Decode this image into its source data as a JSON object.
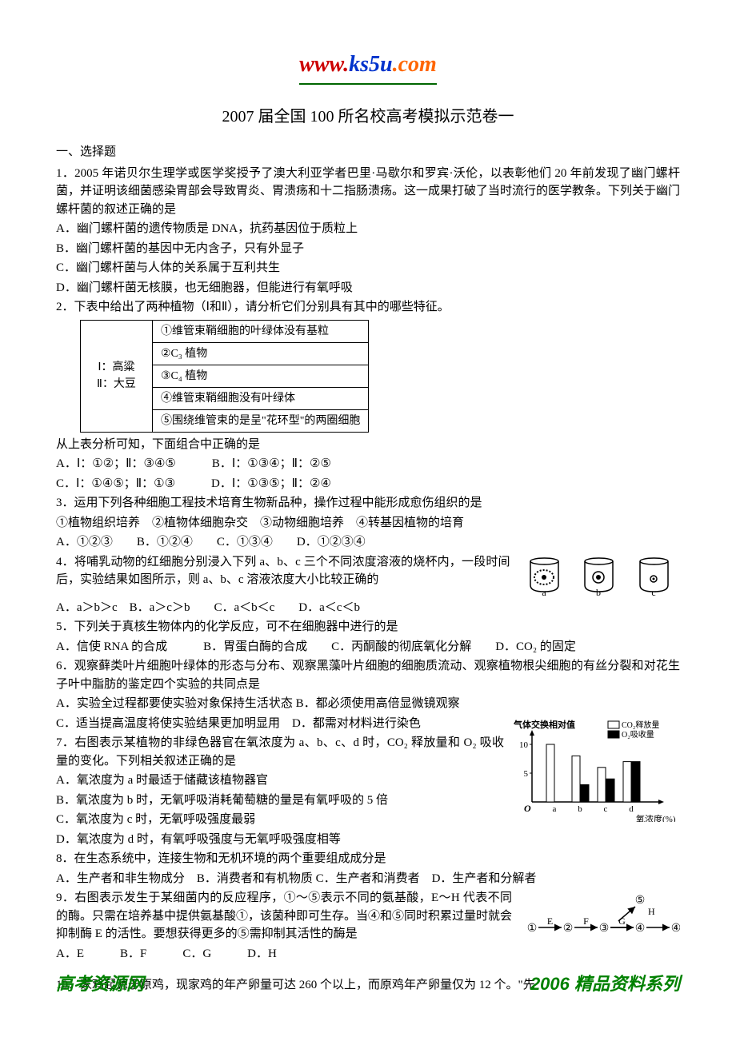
{
  "header": {
    "url_prefix": "www.",
    "url_main": "ks5u",
    "url_suffix": ".com"
  },
  "title": "2007 届全国 100 所名校高考模拟示范卷一",
  "section1": "一、选择题",
  "q1": {
    "stem": "1．2005 年诺贝尔生理学或医学奖授予了澳大利亚学者巴里·马歇尔和罗宾·沃伦，以表彰他们 20 年前发现了幽门螺杆菌，并证明该细菌感染胃部会导致胃炎、胃溃疡和十二指肠溃疡。这一成果打破了当时流行的医学教条。下列关于幽门螺杆菌的叙述正确的是",
    "a": "A．幽门螺杆菌的遗传物质是 DNA，抗药基因位于质粒上",
    "b": "B．幽门螺杆菌的基因中无内含子，只有外显子",
    "c": "C．幽门螺杆菌与人体的关系属于互利共生",
    "d": "D．幽门螺杆菌无核膜，也无细胞器，但能进行有氧呼吸"
  },
  "q2": {
    "stem": "2．下表中给出了两种植物（Ⅰ和Ⅱ），请分析它们分别具有其中的哪些特征。",
    "table_left": "Ⅰ：高粱\nⅡ：大豆",
    "row1": "①维管束鞘细胞的叶绿体没有基粒",
    "row2": "②C₃ 植物",
    "row3": "③C₄ 植物",
    "row4": "④维管束鞘细胞没有叶绿体",
    "row5": "⑤围绕维管束的是呈\"花环型\"的两圈细胞",
    "after": "从上表分析可知，下面组合中正确的是",
    "opts1": "A．Ⅰ：①②；Ⅱ：③④⑤　　　B．Ⅰ：①③④；Ⅱ：②⑤",
    "opts2": "C．Ⅰ：①④⑤；Ⅱ：①③　　　D．Ⅰ：①③⑤；Ⅱ：②④"
  },
  "q3": {
    "stem": "3．运用下列各种细胞工程技术培育生物新品种，操作过程中能形成愈伤组织的是",
    "sub": "①植物组织培养　②植物体细胞杂交　③动物细胞培养　④转基因植物的培育",
    "opts": "A．①②③　　B．①②④　　C．①③④　　D．①②③④"
  },
  "q4": {
    "stem": "4．将哺乳动物的红细胞分别浸入下列 a、b、c 三个不同浓度溶液的烧杯内，一段时间后，实验结果如图所示，则 a、b、c 溶液浓度大小比较正确的",
    "opts": "A．a＞b＞c　B．a＞c＞b　　C．a＜b＜c　　D．a＜c＜b",
    "labels": {
      "a": "a",
      "b": "b",
      "c": "c"
    }
  },
  "q5": {
    "stem": "5．下列关于真核生物体内的化学反应，可不在细胞器中进行的是",
    "opts": "A．信使 RNA 的合成　　　B．胃蛋白酶的合成　　C．丙酮酸的彻底氧化分解　　D．CO₂ 的固定"
  },
  "q6": {
    "stem": "6．观察藓类叶片细胞叶绿体的形态与分布、观察黑藻叶片细胞的细胞质流动、观察植物根尖细胞的有丝分裂和对花生子叶中脂肪的鉴定四个实验的共同点是",
    "a": "A．实验全过程都要使实验对象保持生活状态 B．都必须使用高倍显微镜观察",
    "c": "C．适当提高温度将使实验结果更加明显用　D．都需对材料进行染色"
  },
  "q7": {
    "stem": "7．右图表示某植物的非绿色器官在氧浓度为 a、b、c、d 时，CO₂ 释放量和 O₂ 吸收量的变化。下列相关叙述正确的是",
    "a": "A．氧浓度为 a 时最适于储藏该植物器官",
    "b": "B．氧浓度为 b 时，无氧呼吸消耗葡萄糖的量是有氧呼吸的 5 倍",
    "c": "C．氧浓度为 c 时，无氧呼吸强度最弱",
    "d": "D．氧浓度为 d 时，有氧呼吸强度与无氧呼吸强度相等",
    "chart": {
      "ylabel": "气体交换相对值",
      "legend_co2": "CO₂释放量",
      "legend_o2": "O₂吸收量",
      "xlabel": "氧浓度(%)",
      "yticks": [
        5,
        10
      ],
      "categories": [
        "a",
        "b",
        "c",
        "d"
      ],
      "co2_values": [
        10,
        8,
        6,
        7
      ],
      "o2_values": [
        0,
        3,
        4,
        7
      ],
      "co2_color": "#ffffff",
      "o2_color": "#000000",
      "bg": "#ffffff"
    }
  },
  "q8": {
    "stem": "8．在生态系统中，连接生物和无机环境的两个重要组成成分是",
    "opts": "A．生产者和非生物成分　B．消费者和有机物质 C．生产者和消费者　D．生产者和分解者"
  },
  "q9": {
    "stem": "9．右图表示发生于某细菌内的反应程序，①～⑤表示不同的氨基酸，E～H 代表不同的酶。只需在培养基中提供氨基酸①，该菌种即可生存。当④和⑤同时积累过量时就会抑制酶 E 的活性。要想获得更多的⑤需抑制其活性的酶是",
    "opts": "A．E　　　B．F　　　C．G　　　D．H",
    "diagram": {
      "nodes": [
        "①",
        "②",
        "③",
        "④",
        "⑤"
      ],
      "edges_labels": {
        "E": "E",
        "F": "F",
        "G": "G",
        "H": "H"
      }
    }
  },
  "q10": {
    "stem": "10．家鸡起源于原鸡，现家鸡的年产卵量可达 260 个以上，而原鸡年产卵量仅为 12 个。\"先"
  },
  "footer": {
    "left": "高考资源网",
    "right": "2006 精品资料系列"
  }
}
